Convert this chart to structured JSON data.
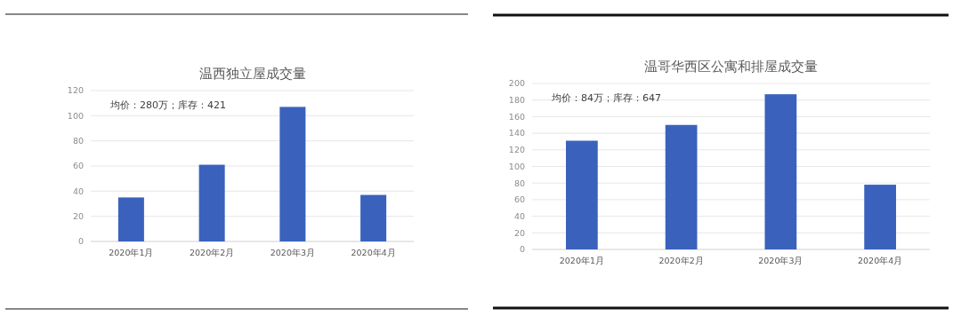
{
  "chart_data": [
    {
      "type": "bar",
      "title": "温西独立屋成交量",
      "categories": [
        "2020年1月",
        "2020年2月",
        "2020年3月",
        "2020年4月"
      ],
      "values": [
        35,
        61,
        107,
        37
      ],
      "color": "#3a62bd",
      "ylim": [
        0,
        120
      ],
      "yticks": [
        0,
        20,
        40,
        60,
        80,
        100,
        120
      ],
      "grid": "y",
      "annotations": [
        "均价：280万；库存：421"
      ]
    },
    {
      "type": "bar",
      "title": "温哥华西区公寓和排屋成交量",
      "categories": [
        "2020年1月",
        "2020年2月",
        "2020年3月",
        "2020年4月"
      ],
      "values": [
        131,
        150,
        187,
        78
      ],
      "color": "#3a62bd",
      "ylim": [
        0,
        200
      ],
      "yticks": [
        0,
        20,
        40,
        60,
        80,
        100,
        120,
        140,
        160,
        180,
        200
      ],
      "grid": "y",
      "annotations": [
        "均价：84万；库存：647"
      ]
    }
  ]
}
